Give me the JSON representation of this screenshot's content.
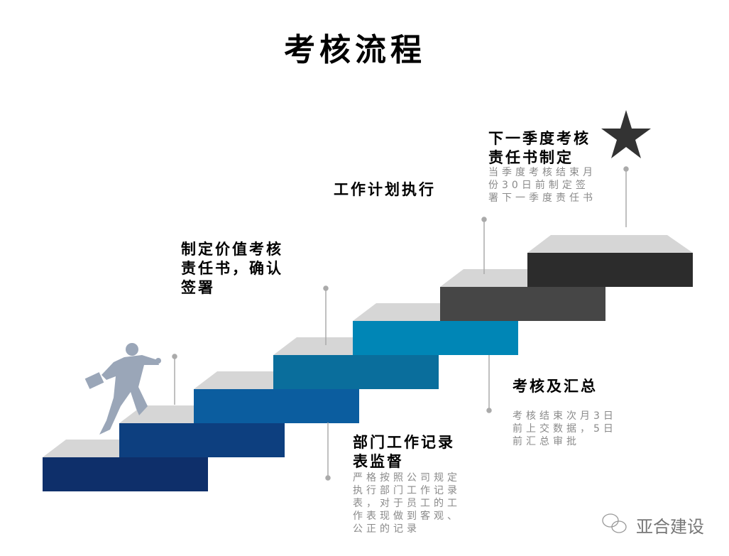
{
  "title": "考核流程",
  "steps": [
    {
      "title": "制定价值考核责任书，确认签署"
    },
    {
      "title": "部门工作记录表监督",
      "desc": "严格按照公司规定执行部门工作记录表，对于员工的工作表现做到客观、公正的记录"
    },
    {
      "title": "工作计划执行"
    },
    {
      "title": "考核及汇总",
      "desc": "考核结束次月3日前上交数据，5日前汇总审批"
    },
    {
      "title": "下一季度考核责任书制定",
      "desc": "当季度考核结束月份30日前制定签署下一季度责任书"
    }
  ],
  "stair_colors": [
    "#0e2f6a",
    "#0d3f7f",
    "#0b5d9f",
    "#0a6e9c",
    "#0086b6",
    "#464646",
    "#2c2c2c"
  ],
  "watermark": "亚合建设"
}
